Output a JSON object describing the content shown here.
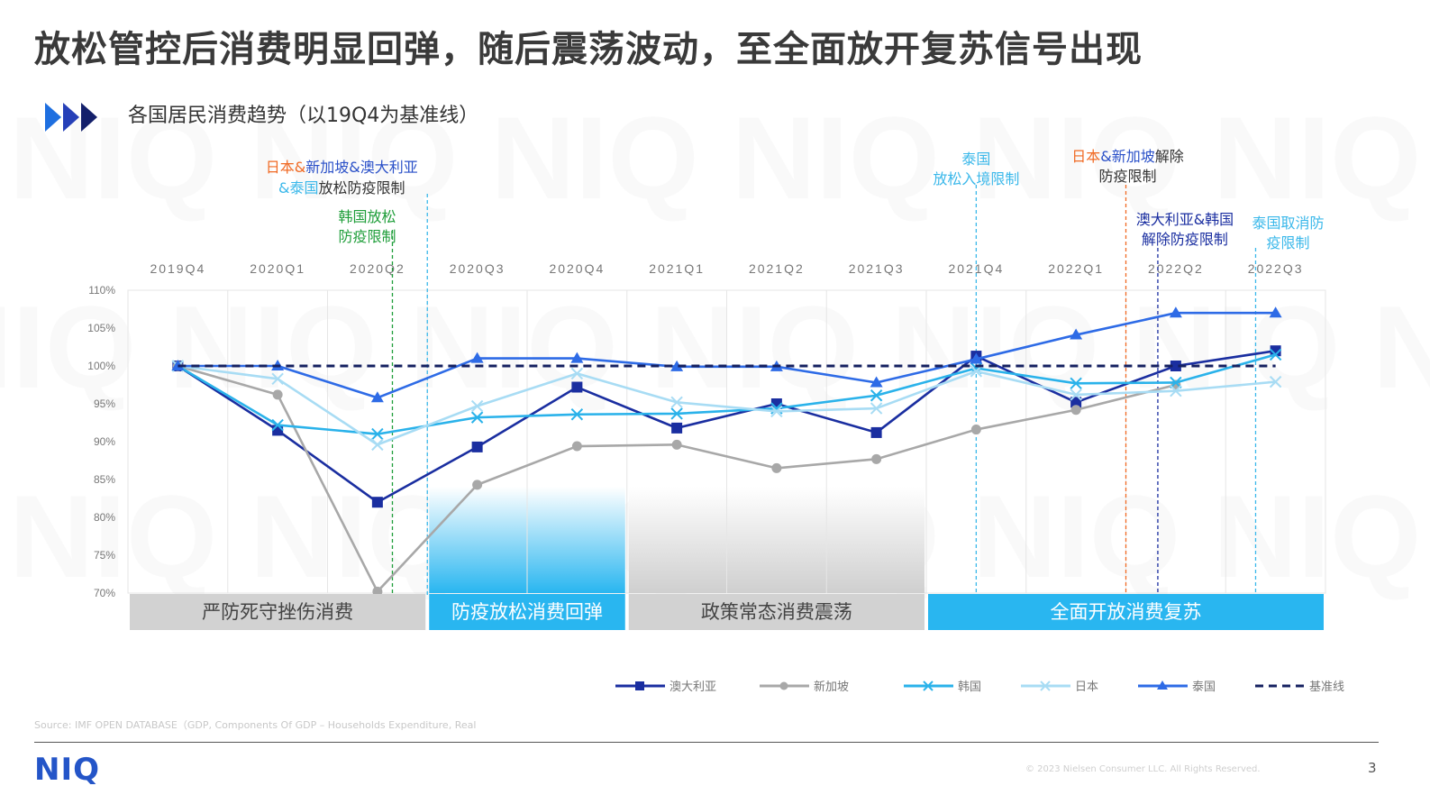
{
  "title": "放松管控后消费明显回弹，随后震荡波动，至全面放开复苏信号出现",
  "subtitle": "各国居民消费趋势（以19Q4为基准线）",
  "source": "Source: IMF OPEN DATABASE（GDP, Components Of GDP – Households Expenditure, Real",
  "logo": "NIQ",
  "copyright": "© 2023 Nielsen Consumer LLC. All Rights Reserved.",
  "page_number": "3",
  "chart_data": {
    "type": "line",
    "categories": [
      "2019Q4",
      "2020Q1",
      "2020Q2",
      "2020Q3",
      "2020Q4",
      "2021Q1",
      "2021Q2",
      "2021Q3",
      "2021Q4",
      "2022Q1",
      "2022Q2",
      "2022Q3"
    ],
    "yticks": [
      "70%",
      "75%",
      "80%",
      "85%",
      "90%",
      "95%",
      "100%",
      "105%",
      "110%"
    ],
    "ylim": [
      70,
      110
    ],
    "series": [
      {
        "name": "澳大利亚",
        "color": "#1a2ea0",
        "marker": "square",
        "dash": false,
        "values": [
          100,
          91.5,
          82,
          89.3,
          97.2,
          91.8,
          95,
          91.2,
          101.3,
          95.2,
          100,
          102
        ]
      },
      {
        "name": "新加坡",
        "color": "#a8a8a8",
        "marker": "circle",
        "dash": false,
        "values": [
          100,
          96.2,
          70.2,
          84.3,
          89.4,
          89.6,
          86.5,
          87.7,
          91.6,
          94.2,
          97.5,
          null
        ]
      },
      {
        "name": "韩国",
        "color": "#2ab2ea",
        "marker": "x",
        "dash": false,
        "values": [
          100,
          92.2,
          91,
          93.2,
          93.6,
          93.7,
          94.4,
          96.1,
          99.7,
          97.7,
          97.8,
          101.5
        ]
      },
      {
        "name": "日本",
        "color": "#a8dcf4",
        "marker": "x",
        "dash": false,
        "values": [
          100,
          98.3,
          89.6,
          94.7,
          99,
          95.2,
          94,
          94.4,
          99.3,
          96.2,
          96.7,
          97.9
        ]
      },
      {
        "name": "泰国",
        "color": "#2e6be6",
        "marker": "triangle",
        "dash": false,
        "values": [
          100,
          100,
          95.8,
          101,
          101,
          99.9,
          99.9,
          97.8,
          100.9,
          104.1,
          107,
          107
        ]
      },
      {
        "name": "基准线",
        "color": "#152060",
        "marker": "none",
        "dash": true,
        "values": [
          100,
          100,
          100,
          100,
          100,
          100,
          100,
          100,
          100,
          100,
          100,
          100
        ]
      }
    ],
    "phases": [
      {
        "label": "严防死守挫伤消费",
        "style": "gray",
        "from": -0.5,
        "to": 2.5
      },
      {
        "label": "防疫放松消费回弹",
        "style": "blue-fade",
        "from": 2.5,
        "to": 4.5
      },
      {
        "label": "政策常态消费震荡",
        "style": "gray-fade",
        "from": 4.5,
        "to": 7.5
      },
      {
        "label": "全面开放消费复苏",
        "style": "blue",
        "from": 7.5,
        "to": 11.5
      }
    ],
    "events": [
      {
        "x": 2.15,
        "color": "#1f9e3a",
        "lines": [
          [
            {
              "t": "韩国放松",
              "c": "#1f9e3a"
            }
          ],
          [
            {
              "t": "防疫限制",
              "c": "#1f9e3a"
            }
          ]
        ]
      },
      {
        "x": 2.5,
        "color": "#3bb8ea",
        "lines": [
          [
            {
              "t": "日本",
              "c": "#f06a24"
            },
            {
              "t": "&",
              "c": "#f06a24"
            },
            {
              "t": "新加坡",
              "c": "#2a50c8"
            },
            {
              "t": "&",
              "c": "#2a50c8"
            },
            {
              "t": "澳大利亚",
              "c": "#2a50c8"
            }
          ],
          [
            {
              "t": "&",
              "c": "#3bb8ea"
            },
            {
              "t": "泰国",
              "c": "#3bb8ea"
            },
            {
              "t": "放松防疫限制",
              "c": "#333333"
            }
          ]
        ]
      },
      {
        "x": 8.0,
        "color": "#3bb8ea",
        "lines": [
          [
            {
              "t": "泰国",
              "c": "#3bb8ea"
            }
          ],
          [
            {
              "t": "放松入境限制",
              "c": "#3bb8ea"
            }
          ]
        ]
      },
      {
        "x": 9.5,
        "color": "#f06a24",
        "lines": [
          [
            {
              "t": "日本",
              "c": "#f06a24"
            },
            {
              "t": "&新加坡",
              "c": "#2a50c8"
            },
            {
              "t": "解除",
              "c": "#333333"
            }
          ],
          [
            {
              "t": "防疫限制",
              "c": "#333333"
            }
          ]
        ]
      },
      {
        "x": 9.82,
        "color": "#1a2ea0",
        "lines": [
          [
            {
              "t": "澳大利亚&韩国",
              "c": "#1a2ea0"
            }
          ],
          [
            {
              "t": "解除防疫限制",
              "c": "#1a2ea0"
            }
          ]
        ]
      },
      {
        "x": 10.8,
        "color": "#3bb8ea",
        "lines": [
          [
            {
              "t": "泰国取消防",
              "c": "#3bb8ea"
            }
          ],
          [
            {
              "t": "疫限制",
              "c": "#3bb8ea"
            }
          ]
        ]
      }
    ]
  }
}
